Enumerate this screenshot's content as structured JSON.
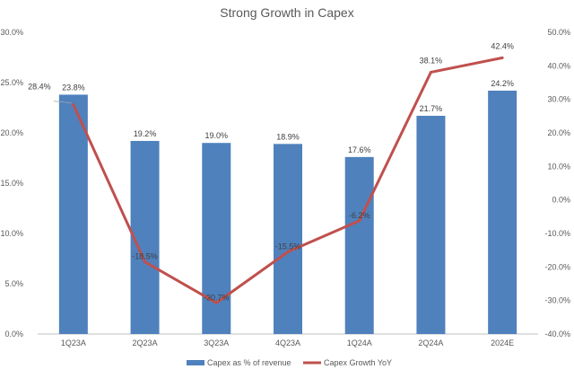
{
  "chart_data": {
    "type": "bar",
    "title": "Strong Growth in Capex",
    "categories": [
      "1Q23A",
      "2Q23A",
      "3Q23A",
      "4Q23A",
      "1Q24A",
      "2Q24A",
      "2024E"
    ],
    "series": [
      {
        "name": "Capex as % of revenue",
        "type": "bar",
        "axis": "left",
        "color": "#4F81BD",
        "values": [
          23.8,
          19.2,
          19.0,
          18.9,
          17.6,
          21.7,
          24.2
        ],
        "labels": [
          "23.8%",
          "19.2%",
          "19.0%",
          "18.9%",
          "17.6%",
          "21.7%",
          "24.2%"
        ]
      },
      {
        "name": "Capex Growth YoY",
        "type": "line",
        "axis": "right",
        "color": "#C0504D",
        "values": [
          28.4,
          -18.5,
          -30.7,
          -15.5,
          -6.2,
          38.1,
          42.4
        ],
        "labels": [
          "28.4%",
          "-18.5%",
          "-30.7%",
          "-15.5%",
          "-6.2%",
          "38.1%",
          "42.4%"
        ]
      }
    ],
    "y_left": {
      "range": [
        0,
        30
      ],
      "ticks": [
        0,
        5,
        10,
        15,
        20,
        25,
        30
      ],
      "tick_labels": [
        "0.0%",
        "5.0%",
        "10.0%",
        "15.0%",
        "20.0%",
        "25.0%",
        "30.0%"
      ]
    },
    "y_right": {
      "range": [
        -40,
        50
      ],
      "ticks": [
        -40,
        -30,
        -20,
        -10,
        0,
        10,
        20,
        30,
        40,
        50
      ],
      "tick_labels": [
        "-40.0%",
        "-30.0%",
        "-20.0%",
        "-10.0%",
        "0.0%",
        "10.0%",
        "20.0%",
        "30.0%",
        "40.0%",
        "50.0%"
      ]
    },
    "grid": false,
    "legend": "bottom"
  }
}
